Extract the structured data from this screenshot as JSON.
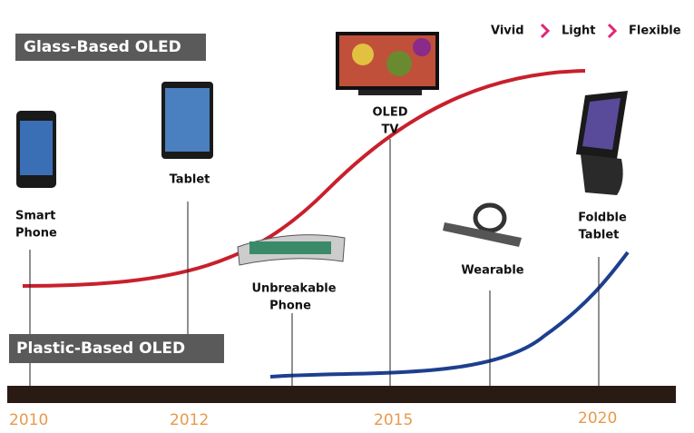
{
  "legend": {
    "steps": [
      "Vivid",
      "Light",
      "Flexible"
    ]
  },
  "tracks": {
    "glass": "Glass-Based OLED",
    "plastic": "Plastic-Based OLED"
  },
  "timeline": {
    "years": [
      "2010",
      "2012",
      "2015",
      "2020"
    ]
  },
  "products": [
    {
      "lines": [
        "Smart",
        "Phone"
      ]
    },
    {
      "lines": [
        "Tablet"
      ]
    },
    {
      "lines": [
        "OLED",
        "TV"
      ]
    },
    {
      "lines": [
        "Unbreakable",
        "Phone"
      ]
    },
    {
      "lines": [
        "Wearable"
      ]
    },
    {
      "lines": [
        "Foldble",
        "Tablet"
      ]
    }
  ]
}
